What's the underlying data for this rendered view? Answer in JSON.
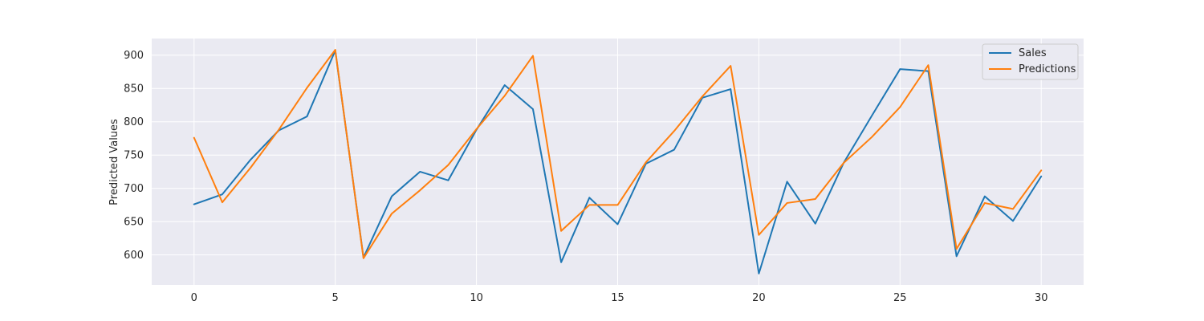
{
  "chart_data": {
    "type": "line",
    "title": "",
    "xlabel": "",
    "ylabel": "Predicted Values",
    "xlim": [
      -1.5,
      31.5
    ],
    "ylim": [
      555,
      925
    ],
    "x_ticks": [
      0,
      5,
      10,
      15,
      20,
      25,
      30
    ],
    "y_ticks": [
      600,
      650,
      700,
      750,
      800,
      850,
      900
    ],
    "grid": true,
    "legend_position": "top-right",
    "x": [
      0,
      1,
      2,
      3,
      4,
      5,
      6,
      7,
      8,
      9,
      10,
      11,
      12,
      13,
      14,
      15,
      16,
      17,
      18,
      19,
      20,
      21,
      22,
      23,
      24,
      25,
      26,
      27,
      28,
      29,
      30
    ],
    "series": [
      {
        "name": "Sales",
        "color": "#1f77b4",
        "values": [
          676,
          691,
          743,
          787,
          808,
          907,
          596,
          688,
          725,
          712,
          788,
          855,
          819,
          589,
          686,
          646,
          737,
          758,
          836,
          849,
          572,
          710,
          647,
          738,
          809,
          879,
          876,
          598,
          688,
          651,
          718
        ]
      },
      {
        "name": "Predictions",
        "color": "#ff7f0e",
        "values": [
          776,
          679,
          731,
          788,
          851,
          908,
          595,
          662,
          697,
          735,
          789,
          839,
          899,
          636,
          675,
          675,
          739,
          786,
          838,
          884,
          630,
          678,
          684,
          738,
          777,
          822,
          885,
          609,
          678,
          669,
          727
        ]
      }
    ]
  }
}
